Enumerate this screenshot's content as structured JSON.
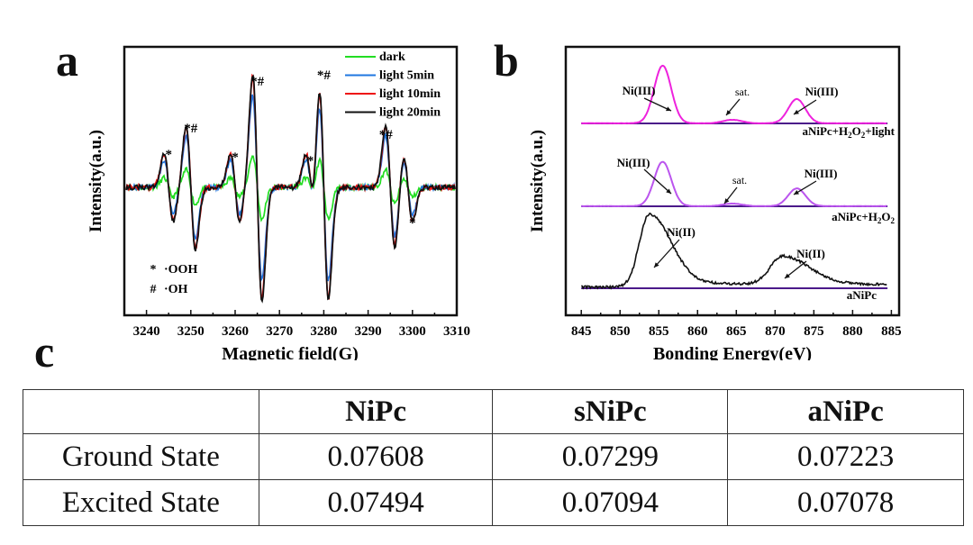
{
  "panels": {
    "a_label": "a",
    "b_label": "b",
    "c_label": "c"
  },
  "chart_data": [
    {
      "id": "a",
      "type": "line",
      "title": "",
      "xlabel": "Magnetic field(G)",
      "ylabel": "Intensity(a.u.)",
      "xlim": [
        3235,
        3310
      ],
      "xticks": [
        "3240",
        "3250",
        "3260",
        "3270",
        "3280",
        "3290",
        "3300",
        "3310"
      ],
      "legend_position": "top-right",
      "series": [
        {
          "name": "dark",
          "color": "#22dd22",
          "scale": 0.28
        },
        {
          "name": "light 5min",
          "color": "#1f77e0",
          "scale": 0.82
        },
        {
          "name": "light 10min",
          "color": "#ee1111",
          "scale": 0.98
        },
        {
          "name": "light 20min",
          "color": "#111111",
          "scale": 1.0
        }
      ],
      "peak_fields": [
        3245,
        3250,
        3260,
        3265,
        3277,
        3280,
        3295,
        3299
      ],
      "peak_amplitudes": [
        0.3,
        0.55,
        0.3,
        1.0,
        0.3,
        1.0,
        0.55,
        0.3
      ],
      "annotations": [
        {
          "text": "*",
          "x": 3245
        },
        {
          "text": "*#",
          "x": 3250
        },
        {
          "text": "*",
          "x": 3260
        },
        {
          "text": "*#",
          "x": 3265
        },
        {
          "text": "*",
          "x": 3277
        },
        {
          "text": "*#",
          "x": 3280
        },
        {
          "text": "*#",
          "x": 3294
        },
        {
          "text": "*",
          "x": 3300
        }
      ],
      "key": [
        {
          "symbol": "*",
          "label": "·OOH"
        },
        {
          "symbol": "#",
          "label": "·OH"
        }
      ]
    },
    {
      "id": "b",
      "type": "line",
      "title": "",
      "xlabel": "Bonding Energy(eV)",
      "ylabel": "Intensity(a.u.)",
      "xlim": [
        843,
        886
      ],
      "xticks": [
        "845",
        "850",
        "855",
        "860",
        "865",
        "870",
        "875",
        "880",
        "885"
      ],
      "baseline_color": "#4b1a8a",
      "series": [
        {
          "name": "aNiPc+H2O2+light",
          "color": "#ee22dd",
          "peaks": [
            {
              "center": 855.5,
              "height": 1.0,
              "width": 1.1
            },
            {
              "center": 864.5,
              "height": 0.06,
              "width": 1.2
            },
            {
              "center": 872.8,
              "height": 0.42,
              "width": 1.1
            }
          ],
          "annotations": [
            {
              "text": "Ni(III)"
            },
            {
              "text": "sat."
            },
            {
              "text": "Ni(III)"
            }
          ]
        },
        {
          "name": "aNiPc+H2O2",
          "color": "#bb55ee",
          "peaks": [
            {
              "center": 855.5,
              "height": 0.85,
              "width": 1.1
            },
            {
              "center": 864.5,
              "height": 0.05,
              "width": 1.2
            },
            {
              "center": 872.8,
              "height": 0.34,
              "width": 1.1
            }
          ],
          "annotations": [
            {
              "text": "Ni(III)"
            },
            {
              "text": "sat."
            },
            {
              "text": "Ni(III)"
            }
          ]
        },
        {
          "name": "aNiPc",
          "color": "#111111",
          "peaks": [
            {
              "center": 853.8,
              "height": 1.05,
              "width": 1.3
            },
            {
              "center": 871.0,
              "height": 0.42,
              "width": 1.6
            }
          ],
          "annotations": [
            {
              "text": "Ni(II)"
            },
            {
              "text": "Ni(II)"
            }
          ]
        }
      ],
      "label_light": "aNiPc+H",
      "label_light_sub1": "2",
      "label_light_mid": "O",
      "label_light_sub2": "2",
      "label_light_end": "+light",
      "label_h2o2": "aNiPc+H",
      "label_h2o2_sub1": "2",
      "label_h2o2_mid": "O",
      "label_h2o2_sub2": "2",
      "label_plain": "aNiPc"
    },
    {
      "id": "c",
      "type": "table",
      "columns": [
        "",
        "NiPc",
        "sNiPc",
        "aNiPc"
      ],
      "rows": [
        [
          "Ground State",
          "0.07608",
          "0.07299",
          "0.07223"
        ],
        [
          "Excited State",
          "0.07494",
          "0.07094",
          "0.07078"
        ]
      ]
    }
  ]
}
